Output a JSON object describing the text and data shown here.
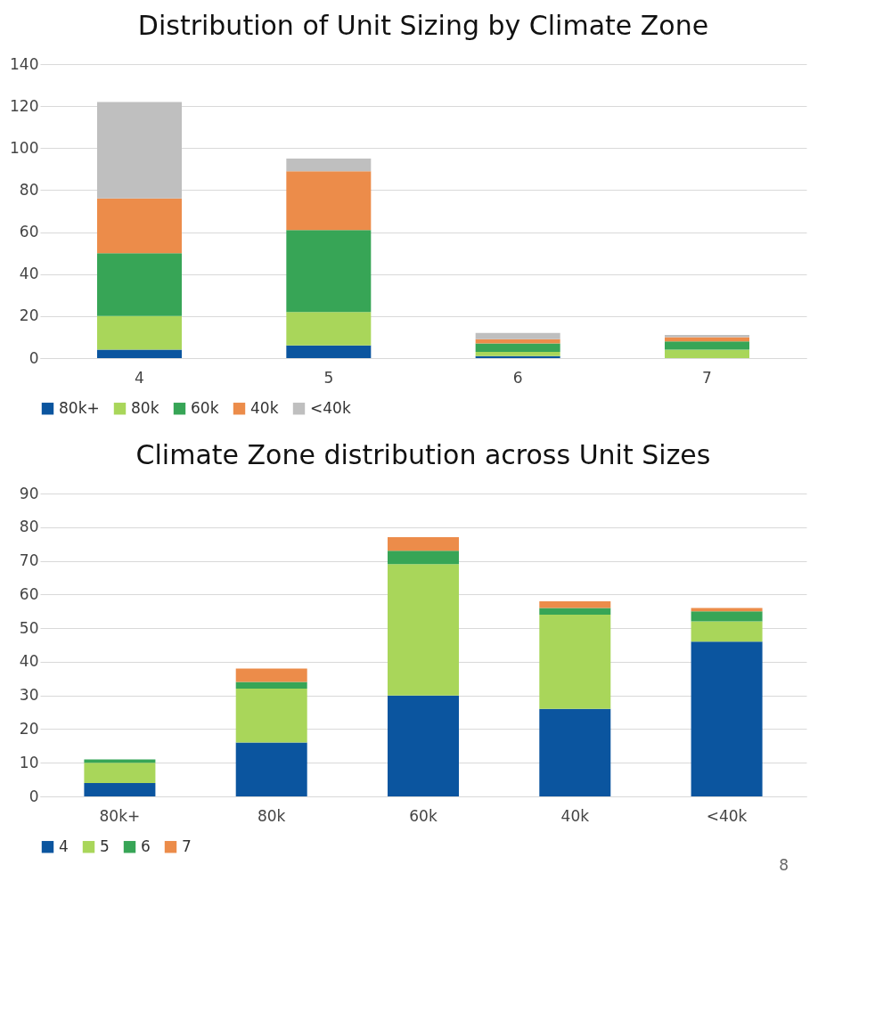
{
  "chart_data": [
    {
      "type": "bar",
      "title": "Distribution of Unit Sizing by Climate Zone",
      "categories": [
        "4",
        "5",
        "6",
        "7"
      ],
      "stacked": true,
      "series": [
        {
          "name": "80k+",
          "color": "#0b559f",
          "values": [
            4,
            6,
            1,
            0
          ]
        },
        {
          "name": "80k",
          "color": "#a9d65a",
          "values": [
            16,
            16,
            2,
            4
          ]
        },
        {
          "name": "60k",
          "color": "#37a556",
          "values": [
            30,
            39,
            4,
            4
          ]
        },
        {
          "name": "40k",
          "color": "#ec8c4a",
          "values": [
            26,
            28,
            2,
            2
          ]
        },
        {
          "name": "<40k",
          "color": "#bfbfbf",
          "values": [
            46,
            6,
            3,
            1
          ]
        }
      ],
      "ylim": [
        0,
        140
      ],
      "yticks": [
        0,
        20,
        40,
        60,
        80,
        100,
        120,
        140
      ],
      "grid": "y",
      "legend": "bottom"
    },
    {
      "type": "bar",
      "title": "Climate Zone distribution across Unit Sizes",
      "categories": [
        "80k+",
        "80k",
        "60k",
        "40k",
        "<40k"
      ],
      "stacked": true,
      "series": [
        {
          "name": "4",
          "color": "#0b559f",
          "values": [
            4,
            16,
            30,
            26,
            46
          ]
        },
        {
          "name": "5",
          "color": "#a9d65a",
          "values": [
            6,
            16,
            39,
            28,
            6
          ]
        },
        {
          "name": "6",
          "color": "#37a556",
          "values": [
            1,
            2,
            4,
            2,
            3
          ]
        },
        {
          "name": "7",
          "color": "#ec8c4a",
          "values": [
            0,
            4,
            4,
            2,
            1
          ]
        }
      ],
      "ylim": [
        0,
        90
      ],
      "yticks": [
        0,
        10,
        20,
        30,
        40,
        50,
        60,
        70,
        80,
        90
      ],
      "grid": "y",
      "legend": "bottom",
      "annotations": [
        "8"
      ]
    }
  ]
}
